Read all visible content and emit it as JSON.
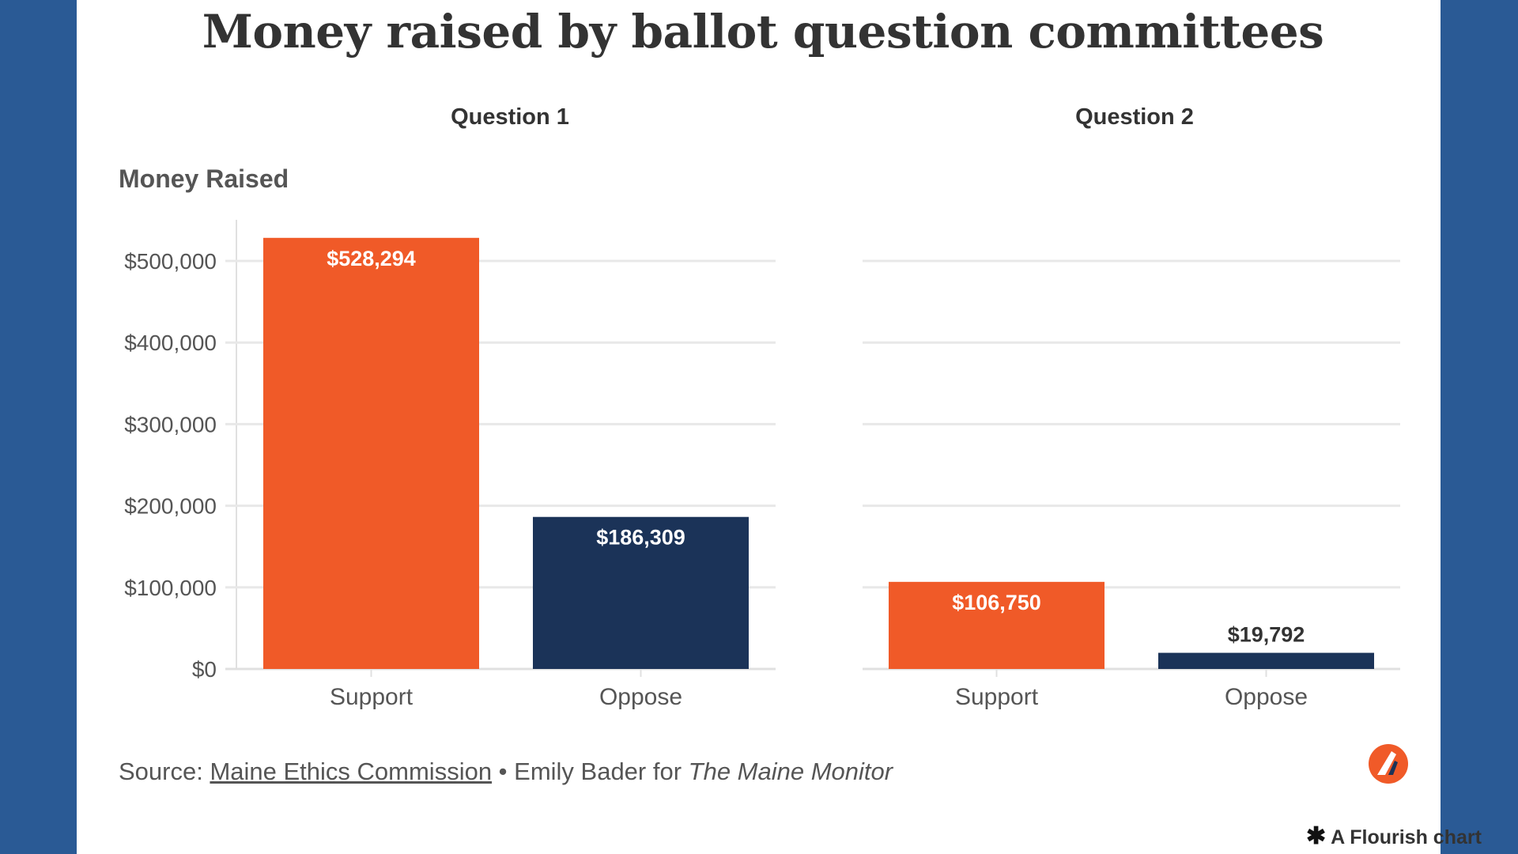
{
  "title": "Money raised by ballot question committees",
  "colors": {
    "support": "#f05a28",
    "oppose": "#1b3358",
    "grid": "#e8e8e8",
    "axis": "#e0e0e0",
    "frame": "#2a5a95"
  },
  "chart_data": {
    "type": "bar",
    "y_title": "Money Raised",
    "y_ticks": [
      "$0",
      "$100,000",
      "$200,000",
      "$300,000",
      "$400,000",
      "$500,000"
    ],
    "ylim": [
      0,
      550000
    ],
    "grid": true,
    "panels": [
      {
        "title": "Question 1",
        "categories": [
          "Support",
          "Oppose"
        ],
        "values": [
          528294,
          186309
        ],
        "labels": [
          "$528,294",
          "$186,309"
        ]
      },
      {
        "title": "Question 2",
        "categories": [
          "Support",
          "Oppose"
        ],
        "values": [
          106750,
          19792
        ],
        "labels": [
          "$106,750",
          "$19,792"
        ]
      }
    ]
  },
  "source": {
    "prefix": "Source: ",
    "link_text": "Maine Ethics Commission",
    "separator": " • Emily Bader for ",
    "publication": "The Maine Monitor"
  },
  "footer": {
    "star": "✱",
    "credit": "A Flourish chart"
  }
}
